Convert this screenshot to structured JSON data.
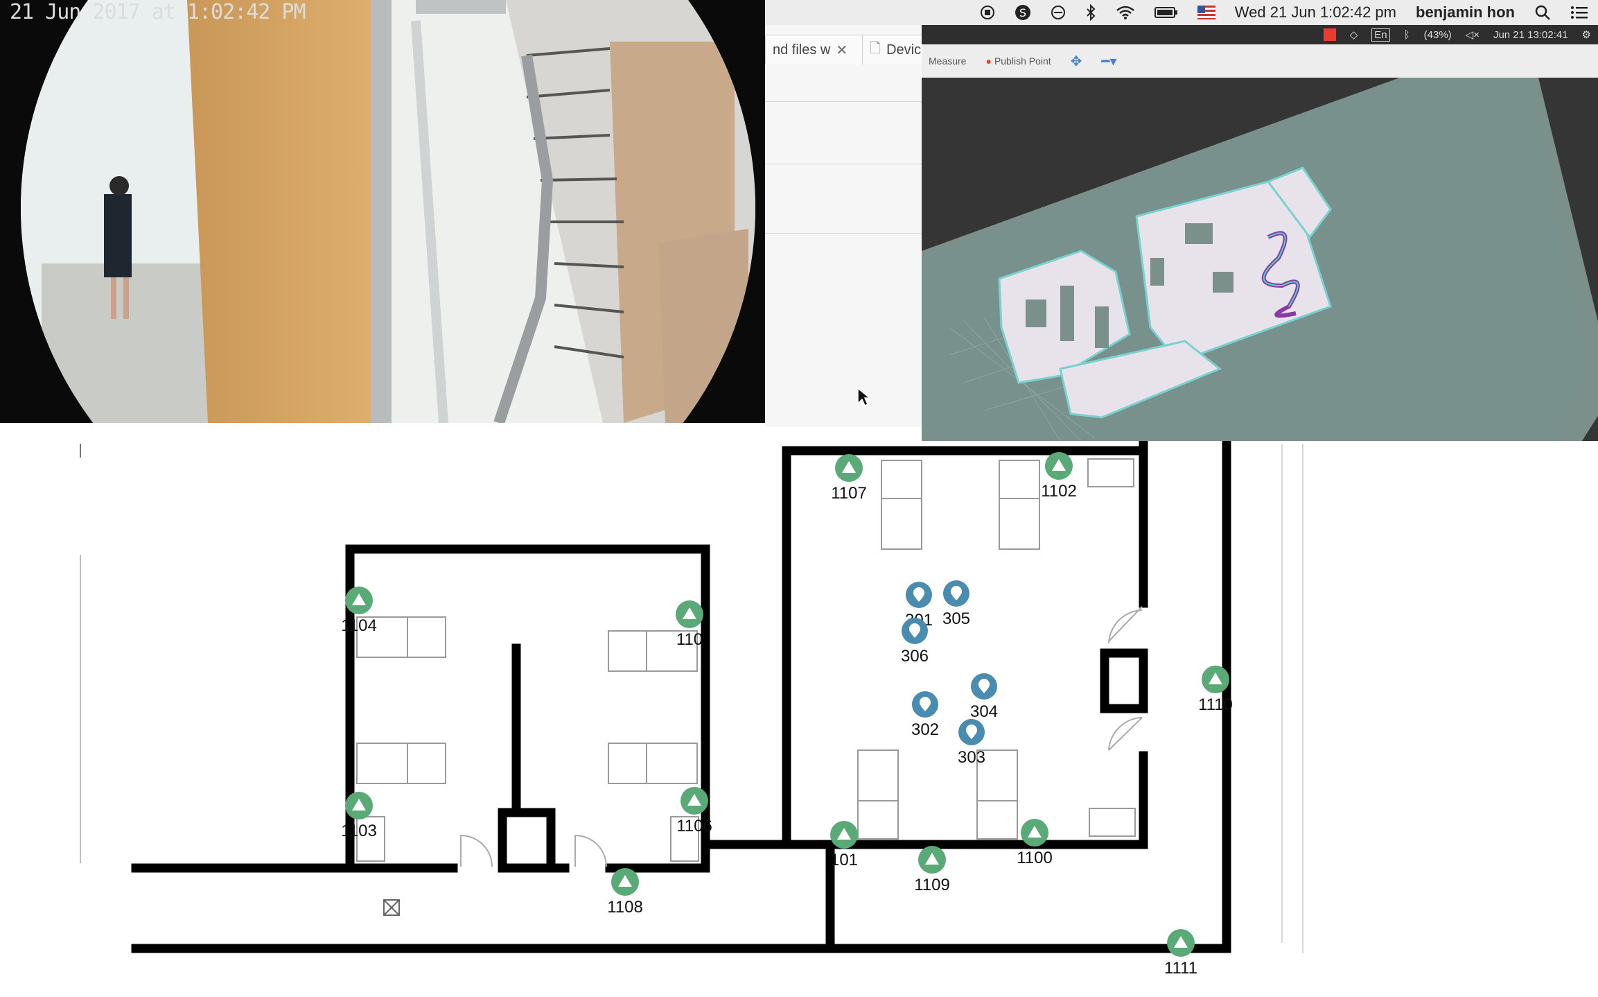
{
  "menubar": {
    "date_time": "Wed 21 Jun  1:02:42 pm",
    "user": "benjamin hon",
    "icons": [
      "record-icon",
      "skype-icon",
      "do-not-disturb-icon",
      "bluetooth-icon",
      "wifi-icon",
      "battery-icon",
      "flag-icon"
    ]
  },
  "browser": {
    "tab1_label": "nd files w",
    "tab2_label": "Devic"
  },
  "rviz": {
    "status_battery": "(43%)",
    "status_lang": "En",
    "status_time": "Jun 21 13:02:41",
    "tools": {
      "measure": "Measure",
      "publish_point": "Publish Point"
    }
  },
  "camera": {
    "timestamp": "21 Jun 2017 at 1:02:42 PM"
  },
  "floorplan": {
    "green_markers": [
      {
        "id": "1107",
        "label": "1107"
      },
      {
        "id": "1102",
        "label": "1102"
      },
      {
        "id": "1104",
        "label": "1104"
      },
      {
        "id": "110",
        "label": "110"
      },
      {
        "id": "1103",
        "label": "1103"
      },
      {
        "id": "1106",
        "label": "1106"
      },
      {
        "id": "1108",
        "label": "1108"
      },
      {
        "id": "101",
        "label": "101"
      },
      {
        "id": "1109",
        "label": "1109"
      },
      {
        "id": "1100",
        "label": "1100"
      },
      {
        "id": "1110",
        "label": "1110"
      },
      {
        "id": "1111",
        "label": "1111"
      }
    ],
    "blue_markers": [
      {
        "id": "301",
        "label": "301"
      },
      {
        "id": "305",
        "label": "305"
      },
      {
        "id": "306",
        "label": "306"
      },
      {
        "id": "304",
        "label": "304"
      },
      {
        "id": "302",
        "label": "302"
      },
      {
        "id": "303",
        "label": "303"
      }
    ],
    "colors": {
      "green": "#5aaa78",
      "blue": "#4a8bb0",
      "wall": "#000000"
    }
  }
}
